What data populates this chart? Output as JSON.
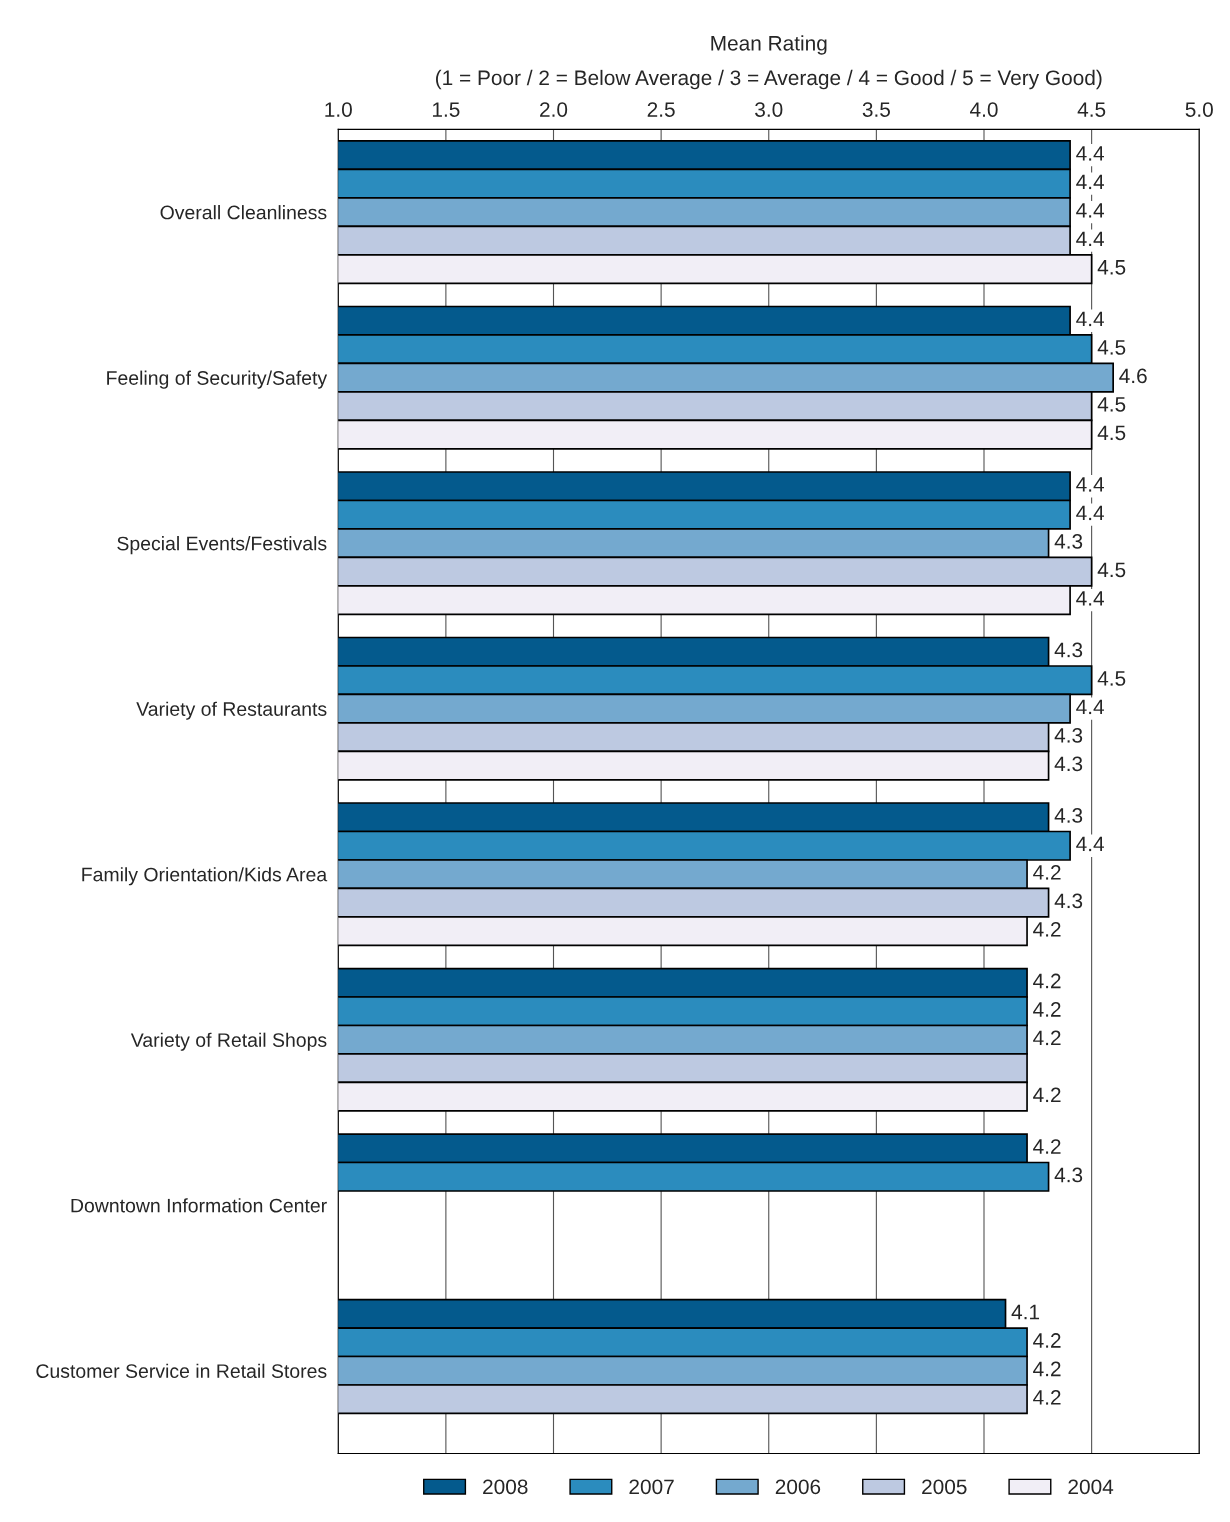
{
  "chart_data": {
    "type": "bar",
    "orientation": "horizontal",
    "xlabel": "Mean Rating\n(1 = Poor / 2 = Below Average / 3 = Average / 4 = Good / 5 = Very Good)",
    "categories": [
      "Overall Cleanliness",
      "Feeling of Security/Safety",
      "Special Events/Festivals",
      "Variety of Restaurants",
      "Family Orientation/Kids Area",
      "Variety of Retail Shops",
      "Downtown Information Center",
      "Customer Service in Retail Stores"
    ],
    "xlim": [
      1.0,
      5.0
    ],
    "xticks": [
      {
        "value": 1,
        "label": "1.0"
      },
      1.5,
      {
        "value": 2,
        "label": "2.0"
      },
      2.5,
      {
        "value": 3,
        "label": "3.0"
      },
      3.5,
      {
        "value": 4,
        "label": "4.0"
      },
      4.5,
      {
        "value": 5,
        "label": "5.0"
      }
    ],
    "grid": "x",
    "legend": "bottom",
    "series": [
      {
        "name": "2008",
        "color": "#045a8d",
        "values": [
          4.4,
          4.4,
          4.4,
          4.3,
          4.3,
          4.2,
          4.2,
          4.1
        ],
        "value_labels": [
          "4.4",
          "4.4",
          "4.4",
          "4.3",
          "4.3",
          "4.2",
          "4.2",
          "4.1"
        ]
      },
      {
        "name": "2007",
        "color": "#2b8cbe",
        "values": [
          4.4,
          4.5,
          4.4,
          4.5,
          4.4,
          4.2,
          4.3,
          4.2
        ],
        "value_labels": [
          "4.4",
          "4.5",
          "4.4",
          "4.5",
          "4.4",
          "4.2",
          "4.3",
          "4.2"
        ]
      },
      {
        "name": "2006",
        "color": "#74a9cf",
        "values": [
          4.4,
          4.6,
          4.3,
          4.4,
          4.2,
          4.2,
          null,
          4.2
        ],
        "value_labels": [
          "4.4",
          "4.6",
          "4.3",
          "4.4",
          "4.2",
          "4.2",
          null,
          "4.2"
        ]
      },
      {
        "name": "2005",
        "color": "#bdc9e1",
        "values": [
          4.4,
          4.5,
          4.5,
          4.3,
          4.3,
          4.2,
          null,
          4.2
        ],
        "value_labels": [
          "4.4",
          "4.5",
          "4.5",
          "4.3",
          "4.3",
          null,
          null,
          "4.2"
        ]
      },
      {
        "name": "2004",
        "color": "#f1eef6",
        "values": [
          4.5,
          4.5,
          4.4,
          4.3,
          4.2,
          4.2,
          null,
          null
        ],
        "value_labels": [
          "4.5",
          "4.5",
          "4.4",
          "4.3",
          "4.2",
          "4.2",
          null,
          null
        ]
      }
    ]
  }
}
